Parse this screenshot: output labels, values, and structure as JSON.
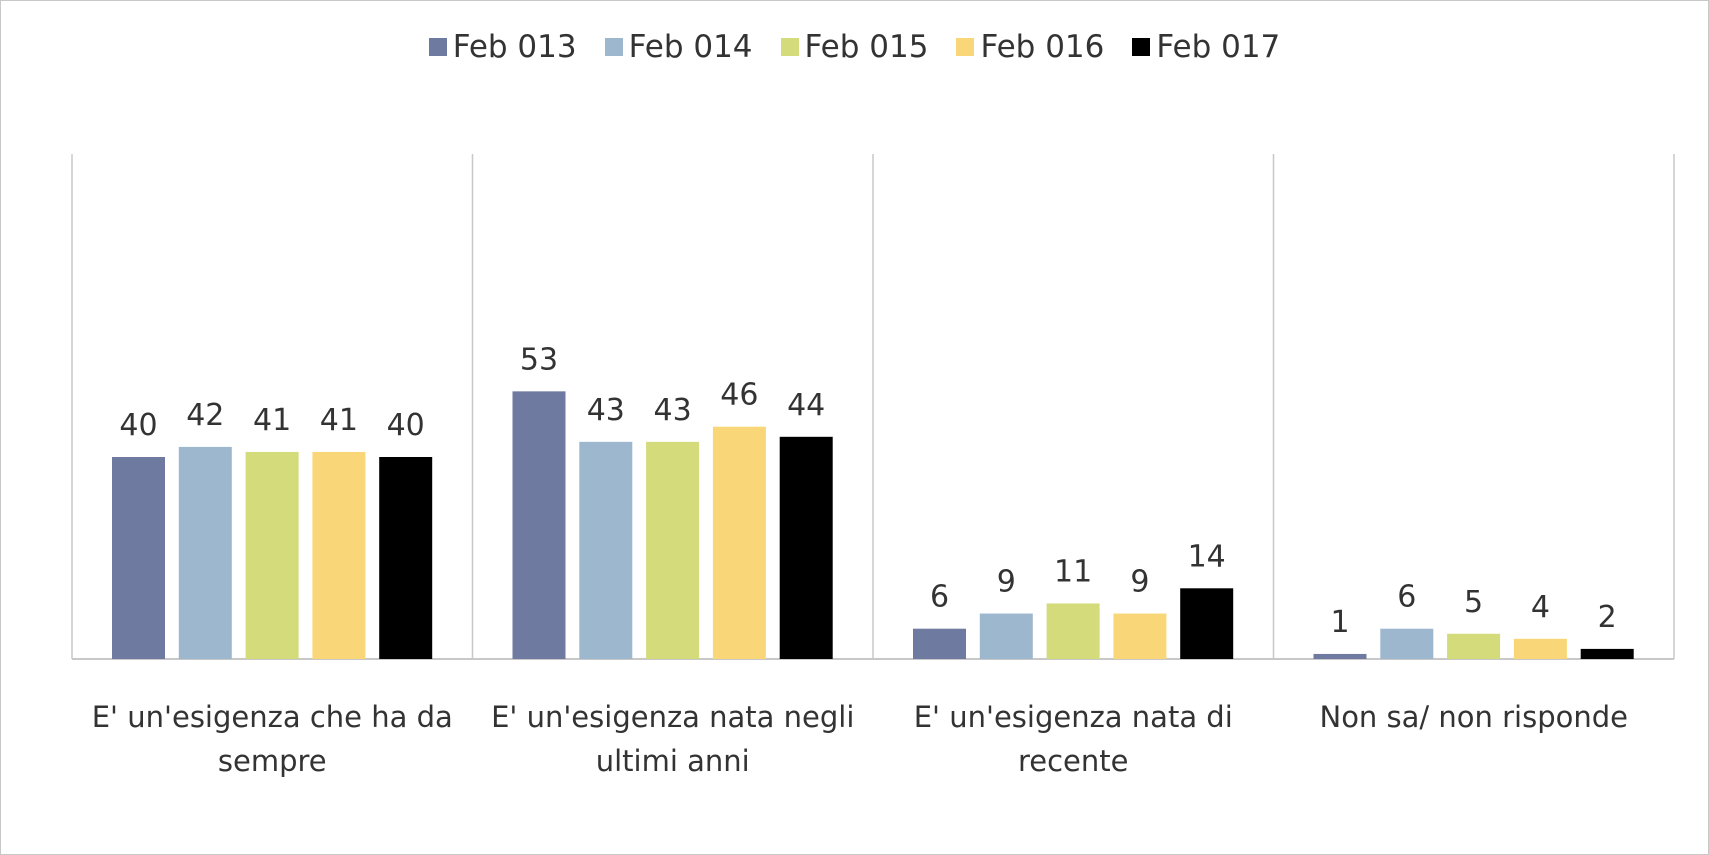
{
  "chart_data": {
    "type": "bar",
    "categories": [
      "E' un'esigenza che ha da sempre",
      "E' un'esigenza nata negli ultimi anni",
      "E' un'esigenza nata di recente",
      "Non sa/ non risponde"
    ],
    "series": [
      {
        "name": "Feb 013",
        "color": "#6f7aa0",
        "values": [
          40,
          53,
          6,
          1
        ]
      },
      {
        "name": "Feb 014",
        "color": "#9db7cf",
        "values": [
          42,
          43,
          9,
          6
        ]
      },
      {
        "name": "Feb 015",
        "color": "#d3db7a",
        "values": [
          41,
          43,
          11,
          5
        ]
      },
      {
        "name": "Feb 016",
        "color": "#f9d778",
        "values": [
          41,
          46,
          9,
          4
        ]
      },
      {
        "name": "Feb 017",
        "color": "#000000",
        "values": [
          40,
          44,
          14,
          2
        ]
      }
    ],
    "ylim": [
      0,
      100
    ],
    "legend": "top"
  }
}
